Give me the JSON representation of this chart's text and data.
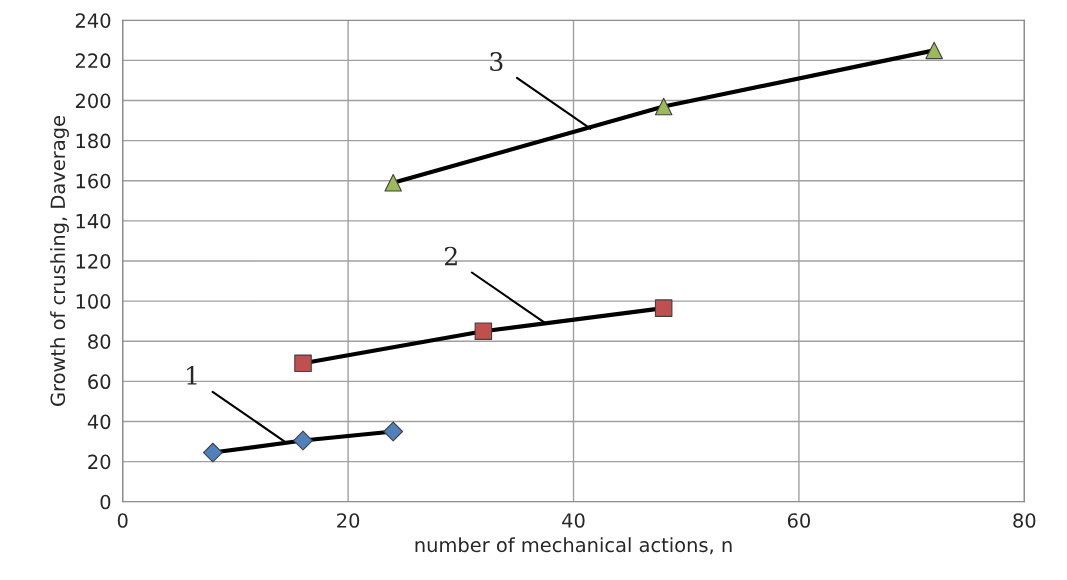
{
  "chart_data": {
    "type": "line",
    "xlabel": "number of mechanical actions, n",
    "ylabel": "Growth of crushing, Daverage",
    "xlim": [
      0,
      80
    ],
    "xticks": [
      0,
      20,
      40,
      60,
      80
    ],
    "ylim": [
      0,
      240
    ],
    "yticks": [
      0,
      20,
      40,
      60,
      80,
      100,
      120,
      140,
      160,
      180,
      200,
      220,
      240
    ],
    "grid": true,
    "legend": false,
    "line_style": "solid",
    "series": [
      {
        "x": [
          8,
          16,
          24
        ],
        "values": [
          24.5,
          30.5,
          35
        ],
        "color": "#4f81bd",
        "marker": "diamond"
      },
      {
        "x": [
          16,
          32,
          48
        ],
        "values": [
          69,
          85,
          96.5
        ],
        "color": "#c0504d",
        "marker": "square"
      },
      {
        "x": [
          24,
          48,
          72
        ],
        "values": [
          159,
          197,
          225
        ],
        "color": "#9bbb59",
        "marker": "triangle"
      }
    ],
    "annotations": [
      {
        "text": "1",
        "x": 14.5,
        "y": 29.5
      },
      {
        "text": "2",
        "x": 37.5,
        "y": 89
      },
      {
        "text": "3",
        "x": 41.5,
        "y": 186
      }
    ]
  }
}
